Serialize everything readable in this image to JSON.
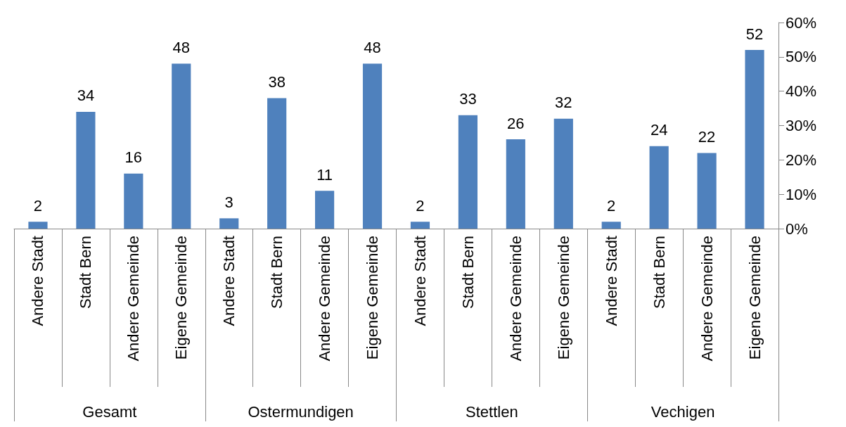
{
  "chart_data": {
    "type": "bar",
    "categories": [
      "Andere Stadt",
      "Stadt Bern",
      "Andere Gemeinde",
      "Eigene Gemeinde",
      "Andere Stadt",
      "Stadt Bern",
      "Andere Gemeinde",
      "Eigene Gemeinde",
      "Andere Stadt",
      "Stadt Bern",
      "Andere Gemeinde",
      "Eigene Gemeinde",
      "Andere Stadt",
      "Stadt Bern",
      "Andere Gemeinde",
      "Eigene Gemeinde"
    ],
    "values": [
      2,
      34,
      16,
      48,
      3,
      38,
      11,
      48,
      2,
      33,
      26,
      32,
      2,
      24,
      22,
      52
    ],
    "color": "#4f81bd",
    "data_labels": true,
    "annotations": [
      "Gesamt",
      "Ostermundigen",
      "Stettlen",
      "Vechigen"
    ],
    "ylim": [
      0,
      60
    ],
    "yticks": [
      {
        "value": 0,
        "label": "0%"
      },
      {
        "value": 10,
        "label": "10%"
      },
      {
        "value": 20,
        "label": "20%"
      },
      {
        "value": 30,
        "label": "30%"
      },
      {
        "value": 40,
        "label": "40%"
      },
      {
        "value": 50,
        "label": "50%"
      },
      {
        "value": 60,
        "label": "60%"
      }
    ],
    "grid": false
  }
}
